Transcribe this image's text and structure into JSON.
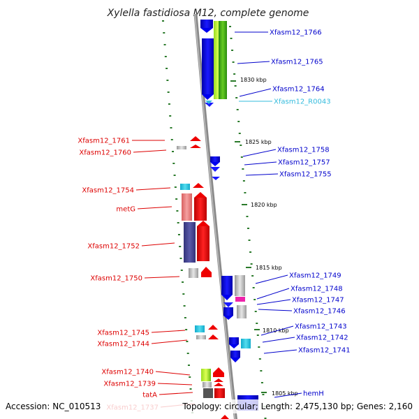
{
  "title": "Xylella fastidiosa M12, complete genome",
  "footer": {
    "accession": "Accession: NC_010513",
    "summary": "Topology: circular; Length: 2,475,130 bp; Genes: 2,160"
  },
  "colors": {
    "forward_label": "#0000cc",
    "reverse_label": "#dd0000",
    "rna_label": "#33bbdd",
    "backbone": "#8a8a8a",
    "tick": "#2a7a2a"
  },
  "kbp_marks": [
    {
      "label": "1830 kbp"
    },
    {
      "label": "1825 kbp"
    },
    {
      "label": "1820 kbp"
    },
    {
      "label": "1815 kbp"
    },
    {
      "label": "1810 kbp"
    },
    {
      "label": "1805 kbp"
    }
  ],
  "forward_labels": [
    {
      "text": "Xfasm12_1766",
      "color": "#0000cc"
    },
    {
      "text": "Xfasm12_1765",
      "color": "#0000cc"
    },
    {
      "text": "Xfasm12_1764",
      "color": "#0000cc"
    },
    {
      "text": "Xfasm12_R0043",
      "color": "#33bbdd"
    },
    {
      "text": "Xfasm12_1758",
      "color": "#0000cc"
    },
    {
      "text": "Xfasm12_1757",
      "color": "#0000cc"
    },
    {
      "text": "Xfasm12_1755",
      "color": "#0000cc"
    },
    {
      "text": "Xfasm12_1749",
      "color": "#0000cc"
    },
    {
      "text": "Xfasm12_1748",
      "color": "#0000cc"
    },
    {
      "text": "Xfasm12_1747",
      "color": "#0000cc"
    },
    {
      "text": "Xfasm12_1746",
      "color": "#0000cc"
    },
    {
      "text": "Xfasm12_1743",
      "color": "#0000cc"
    },
    {
      "text": "Xfasm12_1742",
      "color": "#0000cc"
    },
    {
      "text": "Xfasm12_1741",
      "color": "#0000cc"
    },
    {
      "text": "hemH",
      "color": "#0000cc"
    }
  ],
  "reverse_labels": [
    {
      "text": "Xfasm12_1761",
      "color": "#dd0000"
    },
    {
      "text": "Xfasm12_1760",
      "color": "#dd0000"
    },
    {
      "text": "Xfasm12_1754",
      "color": "#dd0000"
    },
    {
      "text": "metG",
      "color": "#dd0000"
    },
    {
      "text": "Xfasm12_1752",
      "color": "#dd0000"
    },
    {
      "text": "Xfasm12_1750",
      "color": "#dd0000"
    },
    {
      "text": "Xfasm12_1745",
      "color": "#dd0000"
    },
    {
      "text": "Xfasm12_1744",
      "color": "#dd0000"
    },
    {
      "text": "Xfasm12_1740",
      "color": "#dd0000"
    },
    {
      "text": "Xfasm12_1739",
      "color": "#dd0000"
    },
    {
      "text": "tatA",
      "color": "#dd0000"
    },
    {
      "text": "Xfasm12_1737",
      "color": "#dd0000"
    }
  ]
}
